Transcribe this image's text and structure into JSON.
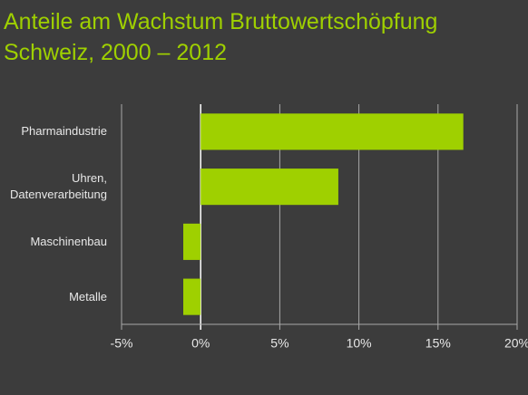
{
  "chart_data": {
    "type": "barh",
    "title": "Anteile am Wachstum Bruttowertschöpfung",
    "subtitle": "Schweiz, 2000 – 2012",
    "categories": [
      "Pharmaindustrie",
      "Uhren,\nDatenverarbeitung",
      "Maschinenbau",
      "Metalle"
    ],
    "values": [
      16.6,
      8.7,
      -1.1,
      -1.1
    ],
    "color": "#9fd000",
    "xlim": [
      -5,
      20
    ],
    "xticks": [
      {
        "value": -5,
        "label": "-5%"
      },
      {
        "value": 0,
        "label": "0%"
      },
      {
        "value": 5,
        "label": "5%"
      },
      {
        "value": 10,
        "label": "10%"
      },
      {
        "value": 15,
        "label": "15%"
      },
      {
        "value": 20,
        "label": "20%"
      }
    ],
    "grid": true
  }
}
